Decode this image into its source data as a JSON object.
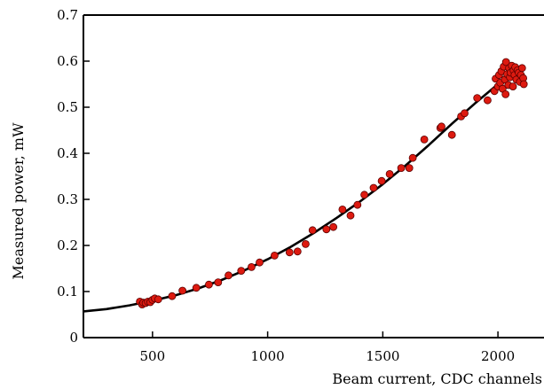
{
  "chart_data": {
    "type": "scatter",
    "title": "",
    "xlabel": "Beam current, CDC channels",
    "ylabel": "Measured power, mW",
    "xlim": [
      200,
      2200
    ],
    "ylim": [
      0,
      0.7
    ],
    "xticks": [
      500,
      1000,
      1500,
      2000
    ],
    "yticks": [
      0,
      0.1,
      0.2,
      0.3,
      0.4,
      0.5,
      0.6,
      0.7
    ],
    "xtick_labels": [
      "500",
      "1000",
      "1500",
      "2000"
    ],
    "ytick_labels": [
      "0",
      "0.1",
      "0.2",
      "0.3",
      "0.4",
      "0.5",
      "0.6",
      "0.7"
    ],
    "grid": false,
    "marker_color": "#dd1a10",
    "line_color": "#000000",
    "series": [
      {
        "type": "scatter",
        "points": [
          [
            445,
            0.078
          ],
          [
            455,
            0.072
          ],
          [
            460,
            0.076
          ],
          [
            470,
            0.075
          ],
          [
            480,
            0.078
          ],
          [
            490,
            0.077
          ],
          [
            500,
            0.082
          ],
          [
            510,
            0.085
          ],
          [
            525,
            0.083
          ],
          [
            585,
            0.09
          ],
          [
            630,
            0.102
          ],
          [
            690,
            0.108
          ],
          [
            745,
            0.115
          ],
          [
            785,
            0.12
          ],
          [
            830,
            0.135
          ],
          [
            885,
            0.145
          ],
          [
            930,
            0.153
          ],
          [
            965,
            0.163
          ],
          [
            1030,
            0.178
          ],
          [
            1095,
            0.185
          ],
          [
            1130,
            0.187
          ],
          [
            1165,
            0.203
          ],
          [
            1195,
            0.233
          ],
          [
            1255,
            0.235
          ],
          [
            1285,
            0.24
          ],
          [
            1325,
            0.278
          ],
          [
            1360,
            0.265
          ],
          [
            1390,
            0.288
          ],
          [
            1420,
            0.31
          ],
          [
            1460,
            0.325
          ],
          [
            1495,
            0.34
          ],
          [
            1530,
            0.355
          ],
          [
            1580,
            0.368
          ],
          [
            1615,
            0.368
          ],
          [
            1630,
            0.39
          ],
          [
            1680,
            0.43
          ],
          [
            1750,
            0.455
          ],
          [
            1755,
            0.458
          ],
          [
            1800,
            0.44
          ],
          [
            1840,
            0.48
          ],
          [
            1855,
            0.487
          ],
          [
            1910,
            0.52
          ],
          [
            1955,
            0.515
          ],
          [
            1985,
            0.535
          ],
          [
            1990,
            0.562
          ],
          [
            2000,
            0.545
          ],
          [
            2005,
            0.57
          ],
          [
            2010,
            0.553
          ],
          [
            2015,
            0.578
          ],
          [
            2020,
            0.54
          ],
          [
            2025,
            0.588
          ],
          [
            2030,
            0.56
          ],
          [
            2033,
            0.528
          ],
          [
            2035,
            0.598
          ],
          [
            2040,
            0.572
          ],
          [
            2045,
            0.548
          ],
          [
            2048,
            0.585
          ],
          [
            2052,
            0.565
          ],
          [
            2055,
            0.575
          ],
          [
            2060,
            0.59
          ],
          [
            2065,
            0.545
          ],
          [
            2068,
            0.58
          ],
          [
            2072,
            0.57
          ],
          [
            2075,
            0.587
          ],
          [
            2080,
            0.56
          ],
          [
            2085,
            0.58
          ],
          [
            2090,
            0.575
          ],
          [
            2095,
            0.555
          ],
          [
            2100,
            0.57
          ],
          [
            2105,
            0.585
          ],
          [
            2110,
            0.563
          ],
          [
            2112,
            0.55
          ]
        ]
      },
      {
        "type": "line",
        "points": [
          [
            200,
            0.057
          ],
          [
            300,
            0.062
          ],
          [
            400,
            0.07
          ],
          [
            500,
            0.08
          ],
          [
            600,
            0.092
          ],
          [
            700,
            0.107
          ],
          [
            800,
            0.125
          ],
          [
            900,
            0.146
          ],
          [
            1000,
            0.17
          ],
          [
            1100,
            0.197
          ],
          [
            1200,
            0.227
          ],
          [
            1300,
            0.26
          ],
          [
            1400,
            0.295
          ],
          [
            1500,
            0.333
          ],
          [
            1600,
            0.374
          ],
          [
            1700,
            0.418
          ],
          [
            1800,
            0.464
          ],
          [
            1900,
            0.508
          ],
          [
            2000,
            0.55
          ],
          [
            2100,
            0.59
          ]
        ]
      }
    ]
  }
}
